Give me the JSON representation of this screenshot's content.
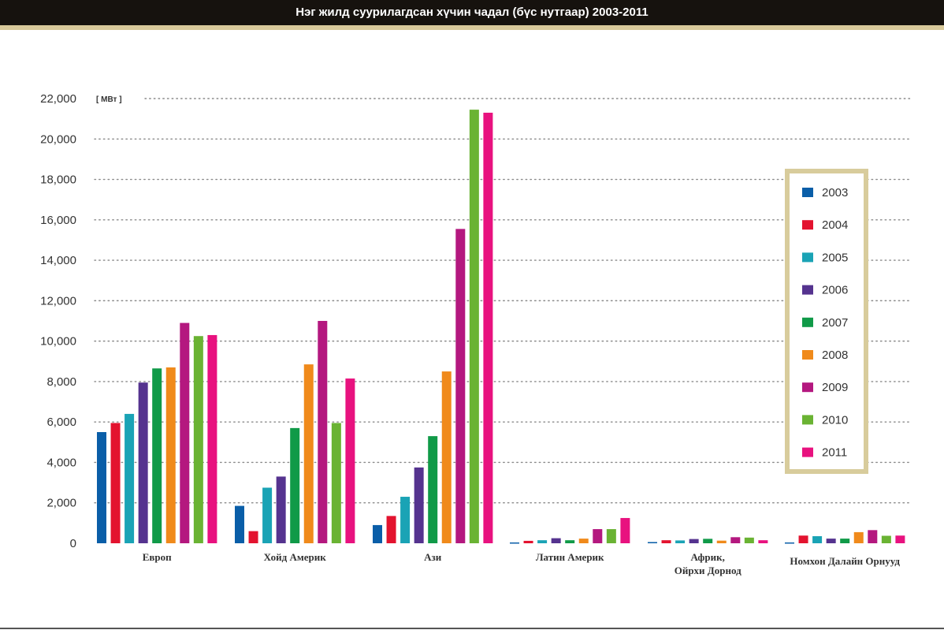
{
  "title": "Нэг жилд суурилагдсан хүчин чадал (бүс нутгаар) 2003-2011",
  "colors": {
    "title_bar": "#16120e",
    "title_accent": "#d8c99a",
    "legend_border": "#d8cc9c"
  },
  "chart_data": {
    "type": "bar",
    "title": "Нэг жилд суурилагдсан хүчин чадал (бүс нутгаар) 2003-2011",
    "unit": "[ МВт ]",
    "ylim": [
      0,
      22000
    ],
    "yticks": [
      "0",
      "2,000",
      "4,000",
      "6,000",
      "8,000",
      "10,000",
      "12,000",
      "14,000",
      "16,000",
      "18,000",
      "20,000",
      "22,000"
    ],
    "grid": true,
    "legend_position": "right",
    "categories": [
      [
        "Европ"
      ],
      [
        "Хойд Америк"
      ],
      [
        "Ази"
      ],
      [
        "Латин Америк"
      ],
      [
        "Африк,",
        "Ойрхи Дорнод"
      ],
      [
        "Номхон Далайн Орнууд"
      ]
    ],
    "series": [
      {
        "name": "2003",
        "color": "#0a5ea8",
        "values": [
          5500,
          1850,
          900,
          40,
          60,
          40
        ]
      },
      {
        "name": "2004",
        "color": "#e3132f",
        "values": [
          5950,
          600,
          1350,
          120,
          150,
          380
        ]
      },
      {
        "name": "2005",
        "color": "#1aa3b5",
        "values": [
          6400,
          2750,
          2300,
          150,
          140,
          350
        ]
      },
      {
        "name": "2006",
        "color": "#55338f",
        "values": [
          7950,
          3300,
          3750,
          250,
          210,
          230
        ]
      },
      {
        "name": "2007",
        "color": "#109a48",
        "values": [
          8650,
          5700,
          5300,
          150,
          220,
          230
        ]
      },
      {
        "name": "2008",
        "color": "#f08a1b",
        "values": [
          8700,
          8850,
          8500,
          230,
          130,
          550
        ]
      },
      {
        "name": "2009",
        "color": "#b4187f",
        "values": [
          10900,
          11000,
          15550,
          700,
          300,
          650
        ]
      },
      {
        "name": "2010",
        "color": "#6ab333",
        "values": [
          10250,
          5950,
          21450,
          700,
          280,
          370
        ]
      },
      {
        "name": "2011",
        "color": "#e8127f",
        "values": [
          10300,
          8150,
          21300,
          1250,
          150,
          380
        ]
      }
    ]
  }
}
